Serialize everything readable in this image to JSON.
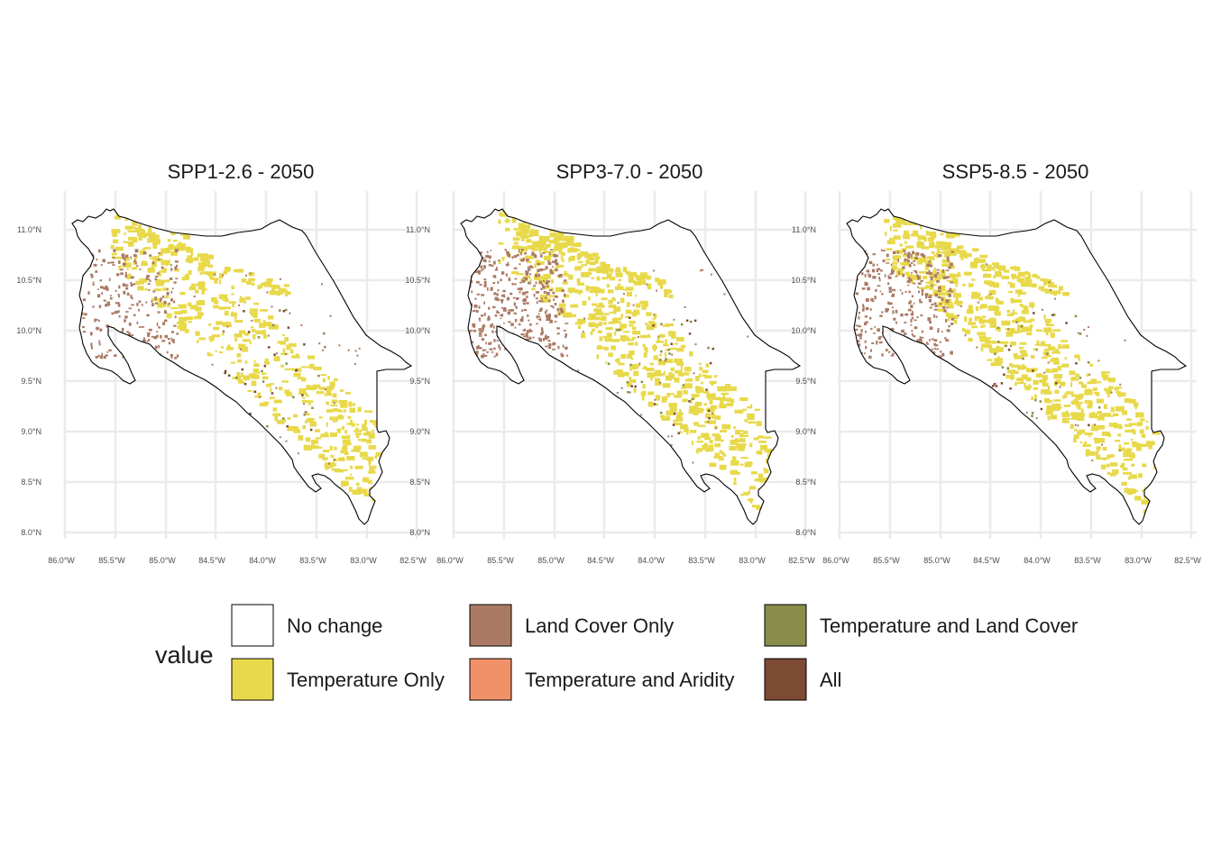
{
  "panels": [
    {
      "title": "SPP1-2.6 - 2050",
      "land_cover_amount": 0.35,
      "temperature_amount": 0.55
    },
    {
      "title": "SPP3-7.0 - 2050",
      "land_cover_amount": 0.55,
      "temperature_amount": 0.65
    },
    {
      "title": "SSP5-8.5 - 2050",
      "land_cover_amount": 0.45,
      "temperature_amount": 0.7
    }
  ],
  "lat_ticks": [
    "11.0°N",
    "10.5°N",
    "10.0°N",
    "9.5°N",
    "9.0°N",
    "8.5°N",
    "8.0°N"
  ],
  "lon_ticks": [
    "86.0°W",
    "85.5°W",
    "85.0°W",
    "84.5°W",
    "84.0°W",
    "83.5°W",
    "83.0°W",
    "82.5°W"
  ],
  "legend": {
    "title": "value",
    "items": [
      {
        "label": "No change",
        "color": "#ffffff"
      },
      {
        "label": "Temperature Only",
        "color": "#e8d94b"
      },
      {
        "label": "Land Cover Only",
        "color": "#ab7a65"
      },
      {
        "label": "Temperature and Aridity",
        "color": "#f0916a"
      },
      {
        "label": "Temperature and Land Cover",
        "color": "#898c4a"
      },
      {
        "label": "All",
        "color": "#7d4a33"
      }
    ]
  },
  "colors": {
    "grid": "#ebebeb",
    "outline": "#000000"
  }
}
